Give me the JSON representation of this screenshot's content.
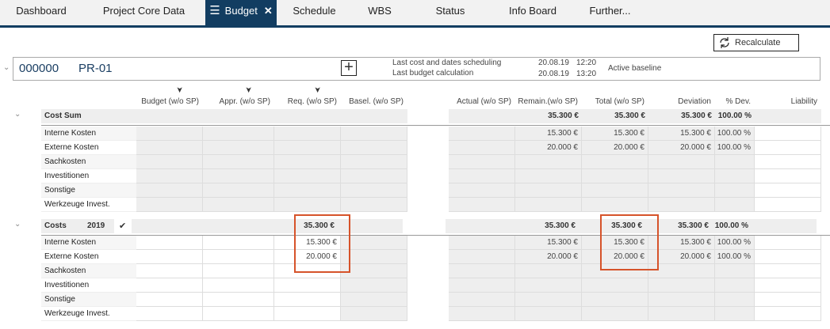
{
  "tabs": [
    {
      "label": "Dashboard"
    },
    {
      "label": "Project Core Data"
    },
    {
      "label": "Budget",
      "active": true
    },
    {
      "label": "Schedule"
    },
    {
      "label": "WBS"
    },
    {
      "label": "Status"
    },
    {
      "label": "Info Board"
    },
    {
      "label": "Further..."
    }
  ],
  "toolbar": {
    "recalculate_label": "Recalculate",
    "recalculate_icon": "refresh-icon"
  },
  "project": {
    "number": "000000",
    "name": "PR-01",
    "add_icon": "plus-icon",
    "last_scheduling_label": "Last cost and dates scheduling",
    "last_scheduling_date": "20.08.19",
    "last_scheduling_time": "12:20",
    "last_budget_label": "Last budget calculation",
    "last_budget_date": "20.08.19",
    "last_budget_time": "13:20",
    "baseline_label": "Active baseline"
  },
  "columns": [
    "Budget (w/o SP)",
    "Appr. (w/o SP)",
    "Req. (w/o SP)",
    "Basel. (w/o SP)",
    "Actual (w/o SP)",
    "Remain.(w/o SP)",
    "Total (w/o SP)",
    "Deviation",
    "% Dev.",
    "Liability"
  ],
  "cost_sum": {
    "label": "Cost Sum",
    "totals": {
      "remain": "35.300 €",
      "total": "35.300 €",
      "deviation": "35.300 €",
      "pct": "100.00 %"
    },
    "rows": [
      {
        "label": "Interne Kosten",
        "remain": "15.300 €",
        "total": "15.300 €",
        "deviation": "15.300 €",
        "pct": "100.00 %"
      },
      {
        "label": "Externe Kosten",
        "remain": "20.000 €",
        "total": "20.000 €",
        "deviation": "20.000 €",
        "pct": "100.00 %"
      },
      {
        "label": "Sachkosten"
      },
      {
        "label": "Investitionen"
      },
      {
        "label": "Sonstige"
      },
      {
        "label": "Werkzeuge Invest."
      }
    ]
  },
  "costs": {
    "label": "Costs",
    "year": "2019",
    "totals": {
      "req": "35.300 €",
      "remain": "35.300 €",
      "total": "35.300 €",
      "deviation": "35.300 €",
      "pct": "100.00 %"
    },
    "rows": [
      {
        "label": "Interne Kosten",
        "req": "15.300 €",
        "remain": "15.300 €",
        "total": "15.300 €",
        "deviation": "15.300 €",
        "pct": "100.00 %"
      },
      {
        "label": "Externe Kosten",
        "req": "20.000 €",
        "remain": "20.000 €",
        "total": "20.000 €",
        "deviation": "20.000 €",
        "pct": "100.00 %"
      },
      {
        "label": "Sachkosten"
      },
      {
        "label": "Investitionen"
      },
      {
        "label": "Sonstige"
      },
      {
        "label": "Werkzeuge Invest."
      }
    ]
  },
  "colors": {
    "tab_active": "#123d61",
    "highlight": "#d6532a"
  }
}
